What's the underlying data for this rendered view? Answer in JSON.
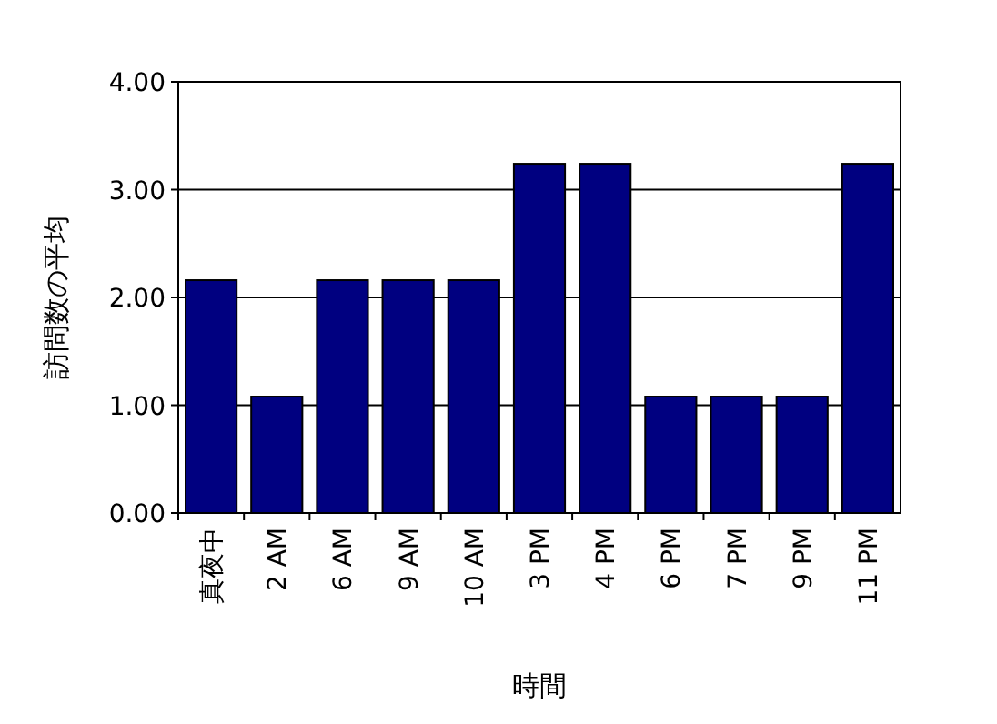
{
  "chart_data": {
    "type": "bar",
    "xlabel": "時間",
    "ylabel": "訪問数の平均",
    "categories": [
      "真夜中",
      "2 AM",
      "6 AM",
      "9 AM",
      "10 AM",
      "3 PM",
      "4 PM",
      "6 PM",
      "7 PM",
      "9 PM",
      "11 PM"
    ],
    "series": [
      {
        "color": "#000080",
        "values": [
          2.16,
          1.08,
          2.16,
          2.16,
          2.16,
          3.24,
          3.24,
          1.08,
          1.08,
          1.08,
          3.24
        ]
      }
    ],
    "ylim": [
      0,
      4
    ],
    "yticks": [
      {
        "value": 0,
        "label": "0.00"
      },
      {
        "value": 1,
        "label": "1.00"
      },
      {
        "value": 2,
        "label": "2.00"
      },
      {
        "value": 3,
        "label": "3.00"
      },
      {
        "value": 4,
        "label": "4.00"
      }
    ],
    "grid": "y"
  }
}
